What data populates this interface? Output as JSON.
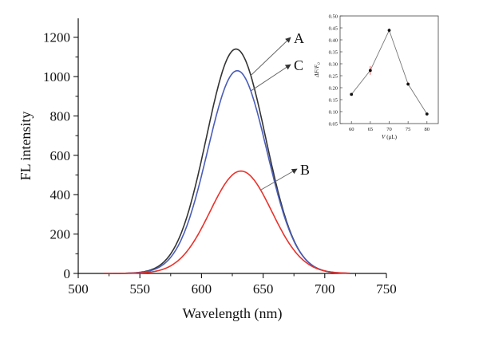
{
  "chart_data": [
    {
      "type": "line",
      "xlabel": "Wavelength (nm)",
      "ylabel": "FL intensity",
      "xlim": [
        500,
        750
      ],
      "ylim": [
        0,
        1300
      ],
      "xticks": [
        500,
        550,
        600,
        650,
        700,
        750
      ],
      "yticks": [
        0,
        200,
        400,
        600,
        800,
        1000,
        1200
      ],
      "x_range": [
        520,
        720
      ],
      "series": [
        {
          "name": "A",
          "color": "#333333",
          "peak": 1140,
          "center": 628,
          "sigma": 24
        },
        {
          "name": "C",
          "color": "#4a5db8",
          "peak": 1030,
          "center": 629,
          "sigma": 24
        },
        {
          "name": "B",
          "color": "#e8322b",
          "peak": 520,
          "center": 632,
          "sigma": 25
        }
      ],
      "annotations": [
        {
          "label": "A",
          "points_to_x": 640
        },
        {
          "label": "C",
          "points_to_x": 640
        },
        {
          "label": "B",
          "points_to_x": 648
        }
      ],
      "legend": "none",
      "grid": false
    },
    {
      "type": "scatter",
      "xlabel_var": "V",
      "xlabel_unit": "(μL)",
      "ylabel_main": "ΔF/F",
      "ylabel_sub": "0",
      "xlim": [
        57,
        83
      ],
      "ylim": [
        0.05,
        0.5
      ],
      "xticks": [
        60,
        65,
        70,
        75,
        80
      ],
      "yticks": [
        "0.05",
        "0.10",
        "0.15",
        "0.20",
        "0.25",
        "0.30",
        "0.35",
        "0.40",
        "0.45",
        "0.50"
      ],
      "points": [
        {
          "x": 60,
          "y": 0.172,
          "err": 0.004
        },
        {
          "x": 65,
          "y": 0.272,
          "err": 0.018
        },
        {
          "x": 70,
          "y": 0.44,
          "err": 0.008
        },
        {
          "x": 75,
          "y": 0.215,
          "err": 0.007
        },
        {
          "x": 80,
          "y": 0.09,
          "err": 0.005
        }
      ],
      "line_color": "#777777",
      "marker_color": "#111111",
      "error_color": "#e04040",
      "grid": false
    }
  ]
}
